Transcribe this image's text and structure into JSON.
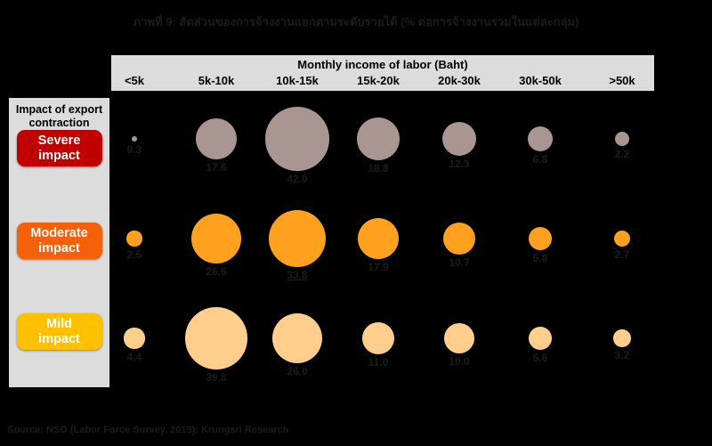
{
  "title": "ภาพที่ 9: สัดส่วนของการจ้างงานแยกตามระดับรายได้ (% ต่อการจ้างงานรวมในแต่ละกลุ่ม)",
  "source": "Source: NSO (Labor Force Survey, 2019); Krungsri Research",
  "chart_data": {
    "type": "bubble",
    "columns_title": "Monthly income of labor (Baht)",
    "rows_title": "Impact of export contraction",
    "categories": [
      "<5k",
      "5k-10k",
      "10k-15k",
      "15k-20k",
      "20k-30k",
      "30k-50k",
      ">50k"
    ],
    "series": [
      {
        "name": "Severe impact",
        "label_color": "#C00000",
        "bubble_color": "#A99592",
        "values": [
          0.3,
          17.6,
          42.0,
          18.8,
          12.3,
          6.8,
          2.2
        ]
      },
      {
        "name": "Moderate impact",
        "label_color": "#F4610A",
        "bubble_color": "#FFA11E",
        "values": [
          2.5,
          26.6,
          33.8,
          17.9,
          10.7,
          5.8,
          2.7
        ],
        "underline_index": 2
      },
      {
        "name": "Mild impact",
        "label_color": "#FFC000",
        "bubble_color": "#FFCE8D",
        "values": [
          4.4,
          39.8,
          26.0,
          11.0,
          10.0,
          5.6,
          3.2
        ]
      }
    ],
    "layout": {
      "legend_position": "left",
      "grid": false,
      "background": "#000000"
    }
  }
}
